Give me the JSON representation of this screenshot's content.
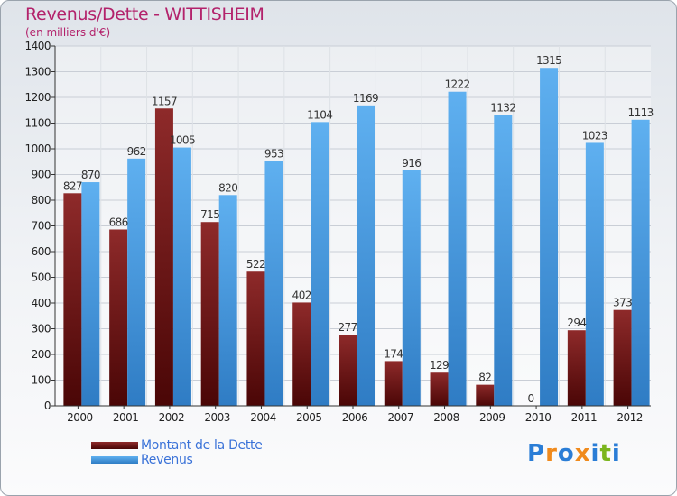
{
  "chart_data": {
    "type": "bar",
    "title": "Revenus/Dette - WITTISHEIM",
    "subtitle": "(en milliers d'€)",
    "categories": [
      "2000",
      "2001",
      "2002",
      "2003",
      "2004",
      "2005",
      "2006",
      "2007",
      "2008",
      "2009",
      "2010",
      "2011",
      "2012"
    ],
    "series": [
      {
        "name": "Montant de la Dette",
        "color": "#7a1414",
        "values": [
          827,
          686,
          1157,
          715,
          522,
          402,
          277,
          174,
          129,
          82,
          0,
          294,
          373
        ]
      },
      {
        "name": "Revenus",
        "color": "#4a9ee6",
        "values": [
          870,
          962,
          1005,
          820,
          953,
          1104,
          1169,
          916,
          1222,
          1132,
          1315,
          1023,
          1113
        ]
      }
    ],
    "ylim": [
      0,
      1400
    ],
    "yticks": [
      0,
      100,
      200,
      300,
      400,
      500,
      600,
      700,
      800,
      900,
      1000,
      1100,
      1200,
      1300,
      1400
    ],
    "grid": true,
    "legend": "bottom-left"
  },
  "logo": {
    "letters": [
      "P",
      "r",
      "o",
      "x",
      "i",
      "t",
      "i"
    ],
    "colors": [
      "#2a7dd6",
      "#f08a1c",
      "#2a7dd6",
      "#f08a1c",
      "#2a7dd6",
      "#7bb51e",
      "#2a7dd6"
    ]
  }
}
